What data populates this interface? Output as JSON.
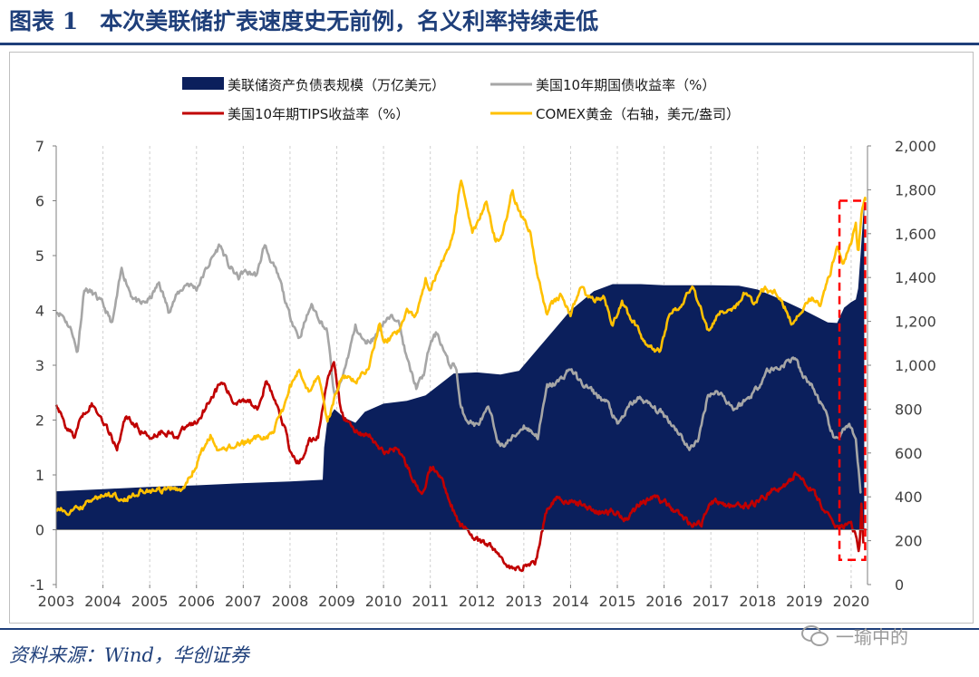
{
  "figure": {
    "label": "图表 1",
    "title": "本次美联储扩表速度史无前例，名义利率持续走低",
    "source": "资料来源：Wind，华创证券",
    "watermark": "一瑜中的"
  },
  "colors": {
    "balance_sheet": "#0b1f5c",
    "treasury_10y": "#a6a6a6",
    "tips_10y": "#c00000",
    "gold": "#ffc000",
    "highlight": "#ff0000",
    "title_blue": "#1f3f7a"
  },
  "chart_data": {
    "type": "line",
    "x_ticks": [
      "2003",
      "2004",
      "2005",
      "2006",
      "2007",
      "2008",
      "2009",
      "2010",
      "2011",
      "2012",
      "2013",
      "2014",
      "2015",
      "2016",
      "2017",
      "2018",
      "2019",
      "2020"
    ],
    "xlim": [
      2003.0,
      2020.35
    ],
    "y_left": {
      "ticks": [
        "7",
        "6",
        "5",
        "4",
        "3",
        "2",
        "1",
        "0",
        "-1"
      ],
      "lim": [
        -1,
        7
      ]
    },
    "y_right": {
      "ticks": [
        "2,000",
        "1,800",
        "1,600",
        "1,400",
        "1,200",
        "1,000",
        "800",
        "600",
        "400",
        "200",
        "0"
      ],
      "lim": [
        0,
        2000
      ],
      "label": "右轴"
    },
    "highlight": {
      "x_range": [
        2019.75,
        2020.3
      ],
      "y_range": [
        -0.55,
        6.0
      ]
    },
    "series": [
      {
        "name": "美联储资产负债表规模（万亿美元）",
        "kind": "area",
        "axis": "left",
        "color_key": "balance_sheet",
        "points": [
          [
            2003.0,
            0.7
          ],
          [
            2004.0,
            0.74
          ],
          [
            2005.0,
            0.78
          ],
          [
            2006.0,
            0.81
          ],
          [
            2007.0,
            0.85
          ],
          [
            2008.0,
            0.88
          ],
          [
            2008.7,
            0.91
          ],
          [
            2008.73,
            1.5
          ],
          [
            2008.8,
            2.0
          ],
          [
            2008.95,
            2.2
          ],
          [
            2009.15,
            2.05
          ],
          [
            2009.4,
            1.95
          ],
          [
            2009.6,
            2.15
          ],
          [
            2010.0,
            2.3
          ],
          [
            2010.5,
            2.35
          ],
          [
            2010.9,
            2.45
          ],
          [
            2011.2,
            2.65
          ],
          [
            2011.5,
            2.85
          ],
          [
            2012.0,
            2.87
          ],
          [
            2012.5,
            2.83
          ],
          [
            2012.9,
            2.9
          ],
          [
            2013.2,
            3.2
          ],
          [
            2013.6,
            3.6
          ],
          [
            2014.0,
            4.0
          ],
          [
            2014.5,
            4.35
          ],
          [
            2014.9,
            4.48
          ],
          [
            2015.5,
            4.48
          ],
          [
            2016.0,
            4.46
          ],
          [
            2017.0,
            4.46
          ],
          [
            2017.6,
            4.45
          ],
          [
            2018.0,
            4.38
          ],
          [
            2018.5,
            4.2
          ],
          [
            2019.0,
            4.0
          ],
          [
            2019.5,
            3.78
          ],
          [
            2019.7,
            3.77
          ],
          [
            2019.85,
            4.05
          ],
          [
            2020.0,
            4.15
          ],
          [
            2020.1,
            4.2
          ],
          [
            2020.15,
            4.4
          ],
          [
            2020.2,
            5.0
          ],
          [
            2020.28,
            6.0
          ]
        ]
      },
      {
        "name": "美国10年期国债收益率（%）",
        "kind": "line",
        "axis": "left",
        "color_key": "treasury_10y",
        "noise": 0.06,
        "points": [
          [
            2003.0,
            4.0
          ],
          [
            2003.15,
            3.9
          ],
          [
            2003.35,
            3.6
          ],
          [
            2003.45,
            3.2
          ],
          [
            2003.6,
            4.4
          ],
          [
            2003.8,
            4.3
          ],
          [
            2004.0,
            4.1
          ],
          [
            2004.2,
            3.75
          ],
          [
            2004.4,
            4.75
          ],
          [
            2004.6,
            4.3
          ],
          [
            2004.8,
            4.1
          ],
          [
            2005.0,
            4.2
          ],
          [
            2005.2,
            4.5
          ],
          [
            2005.4,
            4.0
          ],
          [
            2005.6,
            4.3
          ],
          [
            2005.8,
            4.5
          ],
          [
            2006.0,
            4.4
          ],
          [
            2006.3,
            4.9
          ],
          [
            2006.5,
            5.2
          ],
          [
            2006.7,
            4.8
          ],
          [
            2006.9,
            4.6
          ],
          [
            2007.0,
            4.7
          ],
          [
            2007.3,
            4.65
          ],
          [
            2007.45,
            5.2
          ],
          [
            2007.6,
            4.9
          ],
          [
            2007.8,
            4.5
          ],
          [
            2007.95,
            4.0
          ],
          [
            2008.2,
            3.5
          ],
          [
            2008.45,
            4.1
          ],
          [
            2008.6,
            3.9
          ],
          [
            2008.8,
            3.6
          ],
          [
            2008.95,
            2.4
          ],
          [
            2009.1,
            2.7
          ],
          [
            2009.4,
            3.7
          ],
          [
            2009.6,
            3.4
          ],
          [
            2009.8,
            3.5
          ],
          [
            2010.0,
            3.8
          ],
          [
            2010.3,
            3.9
          ],
          [
            2010.5,
            3.1
          ],
          [
            2010.7,
            2.6
          ],
          [
            2010.85,
            2.8
          ],
          [
            2011.0,
            3.4
          ],
          [
            2011.15,
            3.6
          ],
          [
            2011.4,
            3.0
          ],
          [
            2011.55,
            3.0
          ],
          [
            2011.65,
            2.2
          ],
          [
            2011.8,
            2.0
          ],
          [
            2012.0,
            1.9
          ],
          [
            2012.25,
            2.2
          ],
          [
            2012.5,
            1.5
          ],
          [
            2012.8,
            1.7
          ],
          [
            2013.0,
            1.9
          ],
          [
            2013.3,
            1.7
          ],
          [
            2013.5,
            2.6
          ],
          [
            2013.75,
            2.7
          ],
          [
            2014.0,
            2.95
          ],
          [
            2014.2,
            2.7
          ],
          [
            2014.5,
            2.5
          ],
          [
            2014.8,
            2.3
          ],
          [
            2015.0,
            1.9
          ],
          [
            2015.3,
            2.3
          ],
          [
            2015.5,
            2.4
          ],
          [
            2015.8,
            2.2
          ],
          [
            2016.0,
            2.1
          ],
          [
            2016.3,
            1.8
          ],
          [
            2016.55,
            1.45
          ],
          [
            2016.75,
            1.7
          ],
          [
            2016.95,
            2.5
          ],
          [
            2017.2,
            2.5
          ],
          [
            2017.5,
            2.2
          ],
          [
            2017.8,
            2.4
          ],
          [
            2018.0,
            2.6
          ],
          [
            2018.2,
            2.9
          ],
          [
            2018.45,
            2.95
          ],
          [
            2018.8,
            3.15
          ],
          [
            2018.95,
            2.8
          ],
          [
            2019.1,
            2.7
          ],
          [
            2019.3,
            2.4
          ],
          [
            2019.5,
            2.0
          ],
          [
            2019.65,
            1.6
          ],
          [
            2019.8,
            1.8
          ],
          [
            2019.95,
            1.9
          ],
          [
            2020.1,
            1.6
          ],
          [
            2020.2,
            0.7
          ]
        ]
      },
      {
        "name": "美国10年期TIPS收益率（%）",
        "kind": "line",
        "axis": "left",
        "color_key": "tips_10y",
        "noise": 0.06,
        "points": [
          [
            2003.0,
            2.3
          ],
          [
            2003.2,
            1.9
          ],
          [
            2003.4,
            1.7
          ],
          [
            2003.55,
            2.1
          ],
          [
            2003.75,
            2.3
          ],
          [
            2004.0,
            2.0
          ],
          [
            2004.3,
            1.5
          ],
          [
            2004.5,
            2.1
          ],
          [
            2004.8,
            1.8
          ],
          [
            2005.0,
            1.7
          ],
          [
            2005.3,
            1.8
          ],
          [
            2005.6,
            1.7
          ],
          [
            2005.8,
            1.9
          ],
          [
            2006.0,
            1.95
          ],
          [
            2006.3,
            2.4
          ],
          [
            2006.55,
            2.7
          ],
          [
            2006.8,
            2.3
          ],
          [
            2007.0,
            2.4
          ],
          [
            2007.3,
            2.25
          ],
          [
            2007.5,
            2.7
          ],
          [
            2007.7,
            2.3
          ],
          [
            2007.9,
            1.8
          ],
          [
            2008.0,
            1.4
          ],
          [
            2008.2,
            1.2
          ],
          [
            2008.4,
            1.6
          ],
          [
            2008.6,
            1.7
          ],
          [
            2008.8,
            2.8
          ],
          [
            2008.95,
            3.0
          ],
          [
            2009.1,
            2.1
          ],
          [
            2009.4,
            1.8
          ],
          [
            2009.7,
            1.7
          ],
          [
            2010.0,
            1.4
          ],
          [
            2010.3,
            1.5
          ],
          [
            2010.6,
            1.0
          ],
          [
            2010.8,
            0.6
          ],
          [
            2011.0,
            1.1
          ],
          [
            2011.15,
            1.1
          ],
          [
            2011.35,
            0.7
          ],
          [
            2011.6,
            0.1
          ],
          [
            2011.8,
            0.0
          ],
          [
            2012.0,
            -0.2
          ],
          [
            2012.3,
            -0.3
          ],
          [
            2012.6,
            -0.6
          ],
          [
            2012.8,
            -0.75
          ],
          [
            2013.0,
            -0.65
          ],
          [
            2013.25,
            -0.6
          ],
          [
            2013.5,
            0.4
          ],
          [
            2013.7,
            0.6
          ],
          [
            2014.0,
            0.5
          ],
          [
            2014.3,
            0.45
          ],
          [
            2014.6,
            0.3
          ],
          [
            2014.9,
            0.35
          ],
          [
            2015.2,
            0.2
          ],
          [
            2015.5,
            0.5
          ],
          [
            2015.8,
            0.6
          ],
          [
            2016.0,
            0.5
          ],
          [
            2016.3,
            0.3
          ],
          [
            2016.6,
            0.1
          ],
          [
            2016.8,
            0.1
          ],
          [
            2016.95,
            0.5
          ],
          [
            2017.2,
            0.5
          ],
          [
            2017.5,
            0.4
          ],
          [
            2017.8,
            0.45
          ],
          [
            2018.0,
            0.5
          ],
          [
            2018.3,
            0.7
          ],
          [
            2018.6,
            0.8
          ],
          [
            2018.85,
            1.05
          ],
          [
            2019.0,
            0.9
          ],
          [
            2019.3,
            0.55
          ],
          [
            2019.6,
            0.1
          ],
          [
            2019.8,
            0.05
          ],
          [
            2020.0,
            0.1
          ],
          [
            2020.1,
            -0.1
          ],
          [
            2020.17,
            -0.45
          ],
          [
            2020.22,
            0.5
          ],
          [
            2020.26,
            -0.25
          ]
        ]
      },
      {
        "name": "COMEX黄金（右轴，美元/盎司）",
        "kind": "line",
        "axis": "right",
        "color_key": "gold",
        "noise": 14,
        "points": [
          [
            2003.0,
            340
          ],
          [
            2003.3,
            330
          ],
          [
            2003.6,
            360
          ],
          [
            2003.9,
            400
          ],
          [
            2004.2,
            410
          ],
          [
            2004.5,
            390
          ],
          [
            2004.8,
            430
          ],
          [
            2005.0,
            425
          ],
          [
            2005.4,
            430
          ],
          [
            2005.7,
            440
          ],
          [
            2005.9,
            500
          ],
          [
            2006.0,
            550
          ],
          [
            2006.3,
            680
          ],
          [
            2006.45,
            600
          ],
          [
            2006.7,
            630
          ],
          [
            2006.95,
            640
          ],
          [
            2007.3,
            670
          ],
          [
            2007.6,
            680
          ],
          [
            2007.85,
            800
          ],
          [
            2008.0,
            900
          ],
          [
            2008.2,
            980
          ],
          [
            2008.4,
            880
          ],
          [
            2008.6,
            960
          ],
          [
            2008.8,
            740
          ],
          [
            2008.95,
            850
          ],
          [
            2009.1,
            950
          ],
          [
            2009.4,
            920
          ],
          [
            2009.7,
            1000
          ],
          [
            2009.92,
            1200
          ],
          [
            2010.0,
            1100
          ],
          [
            2010.3,
            1150
          ],
          [
            2010.5,
            1240
          ],
          [
            2010.7,
            1230
          ],
          [
            2010.9,
            1400
          ],
          [
            2011.0,
            1350
          ],
          [
            2011.3,
            1500
          ],
          [
            2011.5,
            1600
          ],
          [
            2011.65,
            1850
          ],
          [
            2011.75,
            1750
          ],
          [
            2011.9,
            1600
          ],
          [
            2012.0,
            1650
          ],
          [
            2012.2,
            1750
          ],
          [
            2012.4,
            1560
          ],
          [
            2012.55,
            1600
          ],
          [
            2012.75,
            1790
          ],
          [
            2012.95,
            1680
          ],
          [
            2013.15,
            1600
          ],
          [
            2013.3,
            1400
          ],
          [
            2013.5,
            1230
          ],
          [
            2013.6,
            1280
          ],
          [
            2013.8,
            1320
          ],
          [
            2014.0,
            1230
          ],
          [
            2014.2,
            1350
          ],
          [
            2014.5,
            1290
          ],
          [
            2014.7,
            1320
          ],
          [
            2014.9,
            1180
          ],
          [
            2015.1,
            1280
          ],
          [
            2015.4,
            1180
          ],
          [
            2015.6,
            1100
          ],
          [
            2015.9,
            1060
          ],
          [
            2016.1,
            1220
          ],
          [
            2016.4,
            1290
          ],
          [
            2016.6,
            1360
          ],
          [
            2016.8,
            1250
          ],
          [
            2016.95,
            1150
          ],
          [
            2017.2,
            1250
          ],
          [
            2017.5,
            1260
          ],
          [
            2017.7,
            1320
          ],
          [
            2017.95,
            1280
          ],
          [
            2018.1,
            1350
          ],
          [
            2018.4,
            1330
          ],
          [
            2018.6,
            1250
          ],
          [
            2018.75,
            1180
          ],
          [
            2018.95,
            1250
          ],
          [
            2019.1,
            1310
          ],
          [
            2019.35,
            1280
          ],
          [
            2019.55,
            1420
          ],
          [
            2019.7,
            1530
          ],
          [
            2019.85,
            1470
          ],
          [
            2020.0,
            1560
          ],
          [
            2020.1,
            1640
          ],
          [
            2020.15,
            1500
          ],
          [
            2020.22,
            1700
          ],
          [
            2020.3,
            1750
          ]
        ]
      }
    ]
  }
}
